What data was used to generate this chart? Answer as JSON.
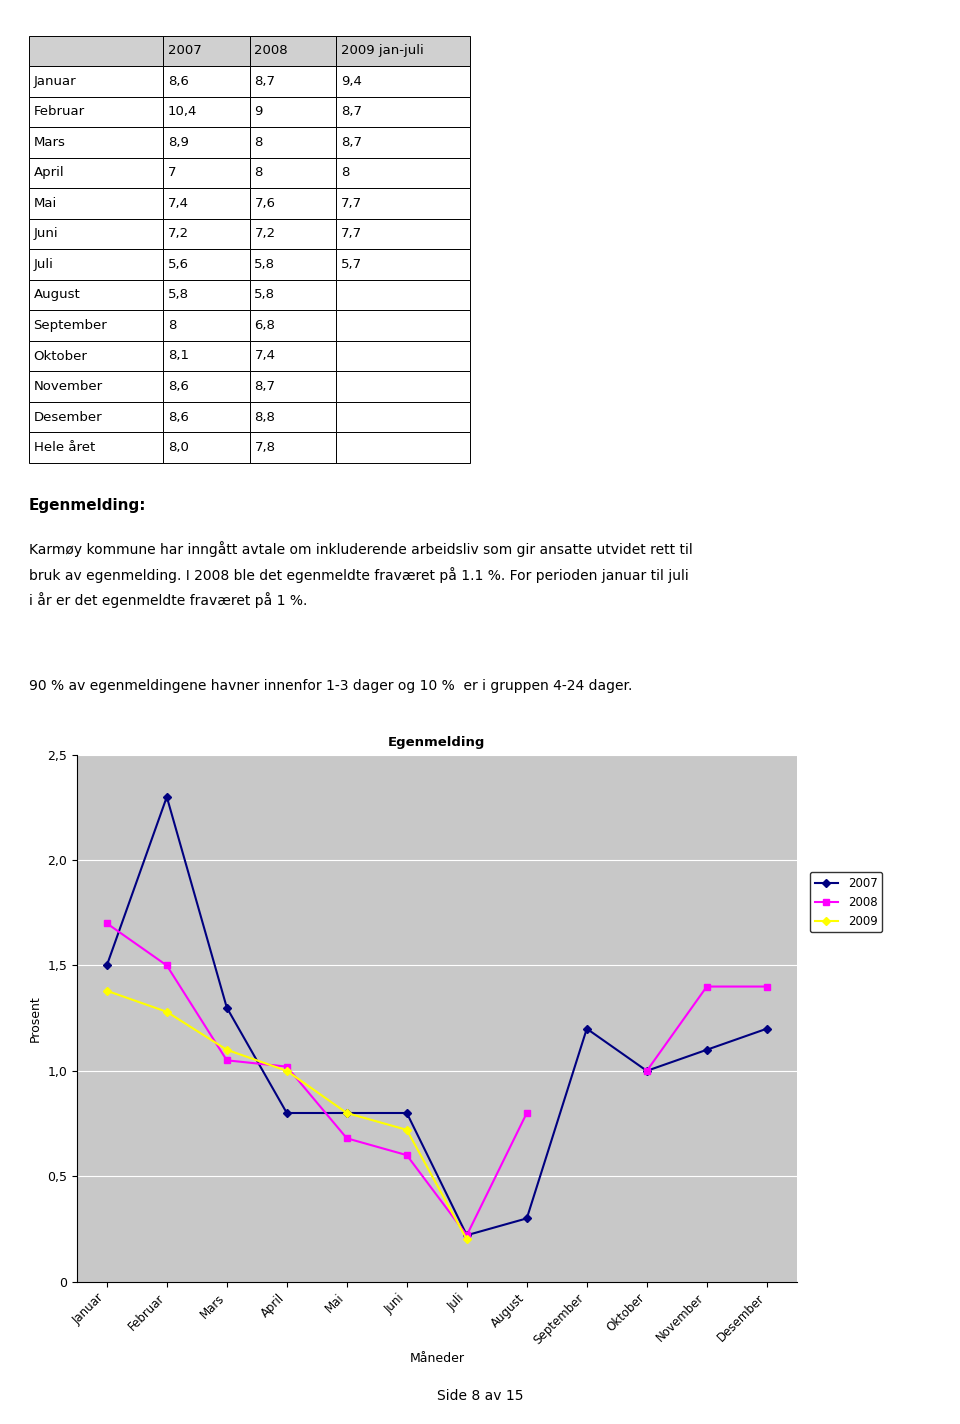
{
  "table": {
    "header": [
      "",
      "2007",
      "2008",
      "2009 jan-juli"
    ],
    "rows": [
      [
        "Januar",
        "8,6",
        "8,7",
        "9,4"
      ],
      [
        "Februar",
        "10,4",
        "9",
        "8,7"
      ],
      [
        "Mars",
        "8,9",
        "8",
        "8,7"
      ],
      [
        "April",
        "7",
        "8",
        "8"
      ],
      [
        "Mai",
        "7,4",
        "7,6",
        "7,7"
      ],
      [
        "Juni",
        "7,2",
        "7,2",
        "7,7"
      ],
      [
        "Juli",
        "5,6",
        "5,8",
        "5,7"
      ],
      [
        "August",
        "5,8",
        "5,8",
        ""
      ],
      [
        "September",
        "8",
        "6,8",
        ""
      ],
      [
        "Oktober",
        "8,1",
        "7,4",
        ""
      ],
      [
        "November",
        "8,6",
        "8,7",
        ""
      ],
      [
        "Desember",
        "8,6",
        "8,8",
        ""
      ],
      [
        "Hele året",
        "8,0",
        "7,8",
        ""
      ]
    ]
  },
  "text_egenmelding_title": "Egenmelding:",
  "text_body1": "Karmøy kommune har inngått avtale om inkluderende arbeidsliv som gir ansatte utvidet rett til",
  "text_body2": "bruk av egenmelding. I 2008 ble det egenmeldte fraværet på 1.1 %. For perioden januar til juli",
  "text_body3": "i år er det egenmeldte fraværet på 1 %.",
  "text_extra": "90 % av egenmeldingene havner innenfor 1-3 dager og 10 %  er i gruppen 4-24 dager.",
  "chart_title": "Egenmelding",
  "chart_xlabel": "Måneder",
  "chart_ylabel": "Prosent",
  "months": [
    "Januar",
    "Februar",
    "Mars",
    "April",
    "Mai",
    "Juni",
    "Juli",
    "August",
    "September",
    "Oktober",
    "November",
    "Desember"
  ],
  "series_2007": [
    1.5,
    2.3,
    1.3,
    0.8,
    0.8,
    0.8,
    0.22,
    0.3,
    1.2,
    1.0,
    1.1,
    1.2
  ],
  "series_2008": [
    1.7,
    1.5,
    1.05,
    1.02,
    0.68,
    0.6,
    0.22,
    0.8,
    null,
    1.0,
    1.4,
    1.4
  ],
  "series_2009": [
    1.38,
    1.28,
    1.1,
    1.0,
    0.8,
    0.72,
    0.2,
    null,
    null,
    null,
    null,
    null
  ],
  "color_2007": "#000080",
  "color_2008": "#ff00ff",
  "color_2009": "#ffff00",
  "ylim": [
    0,
    2.5
  ],
  "yticks": [
    0,
    0.5,
    1.0,
    1.5,
    2.0,
    2.5
  ],
  "chart_bg": "#c8c8c8",
  "footer_text": "Side 8 av 15"
}
